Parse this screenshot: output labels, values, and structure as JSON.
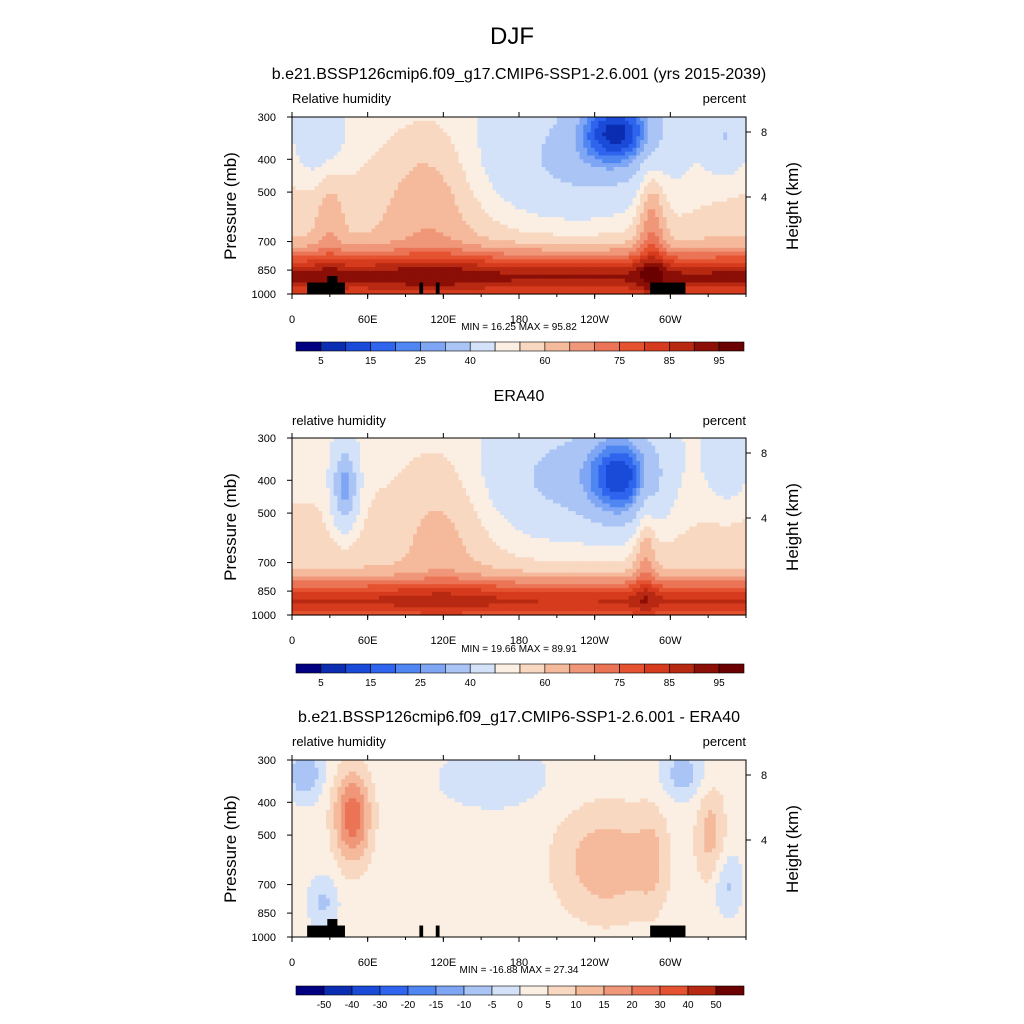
{
  "figure": {
    "main_title": "DJF"
  },
  "chart_data": [
    {
      "type": "heatmap",
      "title": "b.e21.BSSP126cmip6.f09_g17.CMIP6-SSP1-2.6.001 (yrs 2015-2039)",
      "left_label": "Relative humidity",
      "right_label": "percent",
      "ylabel": "Pressure (mb)",
      "y2label": "Height (km)",
      "x_ticks": [
        "0",
        "60E",
        "120E",
        "180",
        "120W",
        "60W"
      ],
      "x_tick_values": [
        0,
        60,
        120,
        180,
        240,
        300
      ],
      "xlim": [
        0,
        360
      ],
      "y_ticks": [
        "300",
        "400",
        "500",
        "700",
        "850",
        "1000"
      ],
      "y_tick_values": [
        300,
        400,
        500,
        700,
        850,
        1000
      ],
      "ylim": [
        1000,
        300
      ],
      "y2_ticks": [
        "8",
        "4"
      ],
      "stats": "MIN =  16.25  MAX =  95.82",
      "min": 16.25,
      "max": 95.82,
      "colorbar": {
        "levels": [
          5,
          10,
          15,
          20,
          25,
          30,
          40,
          50,
          55,
          60,
          65,
          70,
          75,
          80,
          85,
          90,
          95
        ],
        "labels": [
          "5",
          "15",
          "25",
          "40",
          "60",
          "75",
          "85",
          "95"
        ],
        "colors": [
          "#000080",
          "#0b2db2",
          "#1a4bd8",
          "#2e64ee",
          "#4f86f2",
          "#7ea6f4",
          "#a9c4f5",
          "#d3e2f8",
          "#fbefe3",
          "#f9d8c1",
          "#f5b99b",
          "#f0977a",
          "#eb7456",
          "#e55230",
          "#d63b1d",
          "#b82912",
          "#8b0e07",
          "#6a0000"
        ]
      },
      "terrain": true
    },
    {
      "type": "heatmap",
      "title": "ERA40",
      "left_label": "relative humidity",
      "right_label": "percent",
      "ylabel": "Pressure (mb)",
      "y2label": "Height (km)",
      "x_ticks": [
        "0",
        "60E",
        "120E",
        "180",
        "120W",
        "60W"
      ],
      "x_tick_values": [
        0,
        60,
        120,
        180,
        240,
        300
      ],
      "xlim": [
        0,
        360
      ],
      "y_ticks": [
        "300",
        "400",
        "500",
        "700",
        "850",
        "1000"
      ],
      "y_tick_values": [
        300,
        400,
        500,
        700,
        850,
        1000
      ],
      "ylim": [
        1000,
        300
      ],
      "y2_ticks": [
        "8",
        "4"
      ],
      "stats": "MIN =  19.66  MAX =  89.91",
      "min": 19.66,
      "max": 89.91,
      "colorbar": {
        "levels": [
          5,
          10,
          15,
          20,
          25,
          30,
          40,
          50,
          55,
          60,
          65,
          70,
          75,
          80,
          85,
          90,
          95
        ],
        "labels": [
          "5",
          "15",
          "25",
          "40",
          "60",
          "75",
          "85",
          "95"
        ],
        "colors": [
          "#000080",
          "#0b2db2",
          "#1a4bd8",
          "#2e64ee",
          "#4f86f2",
          "#7ea6f4",
          "#a9c4f5",
          "#d3e2f8",
          "#fbefe3",
          "#f9d8c1",
          "#f5b99b",
          "#f0977a",
          "#eb7456",
          "#e55230",
          "#d63b1d",
          "#b82912",
          "#8b0e07",
          "#6a0000"
        ]
      },
      "terrain": false
    },
    {
      "type": "heatmap",
      "title": "b.e21.BSSP126cmip6.f09_g17.CMIP6-SSP1-2.6.001 - ERA40",
      "left_label": "relative humidity",
      "right_label": "percent",
      "ylabel": "Pressure (mb)",
      "y2label": "Height (km)",
      "x_ticks": [
        "0",
        "60E",
        "120E",
        "180",
        "120W",
        "60W"
      ],
      "x_tick_values": [
        0,
        60,
        120,
        180,
        240,
        300
      ],
      "xlim": [
        0,
        360
      ],
      "y_ticks": [
        "300",
        "400",
        "500",
        "700",
        "850",
        "1000"
      ],
      "y_tick_values": [
        300,
        400,
        500,
        700,
        850,
        1000
      ],
      "ylim": [
        1000,
        300
      ],
      "y2_ticks": [
        "8",
        "4"
      ],
      "stats": "MIN = -16.88  MAX =  27.34",
      "min": -16.88,
      "max": 27.34,
      "colorbar": {
        "levels": [
          -50,
          -40,
          -30,
          -20,
          -15,
          -10,
          -5,
          0,
          5,
          10,
          15,
          20,
          30,
          40,
          50
        ],
        "labels": [
          "-50",
          "-40",
          "-30",
          "-20",
          "-15",
          "-10",
          "-5",
          "0",
          "5",
          "10",
          "15",
          "20",
          "30",
          "40",
          "50"
        ],
        "colors": [
          "#000080",
          "#0b2db2",
          "#1a4bd8",
          "#2e64ee",
          "#4f86f2",
          "#7ea6f4",
          "#a9c4f5",
          "#d3e2f8",
          "#fbefe3",
          "#f9d8c1",
          "#f5b99b",
          "#f0977a",
          "#eb7456",
          "#e55230",
          "#b82912",
          "#6a0000"
        ]
      },
      "terrain": true
    }
  ]
}
